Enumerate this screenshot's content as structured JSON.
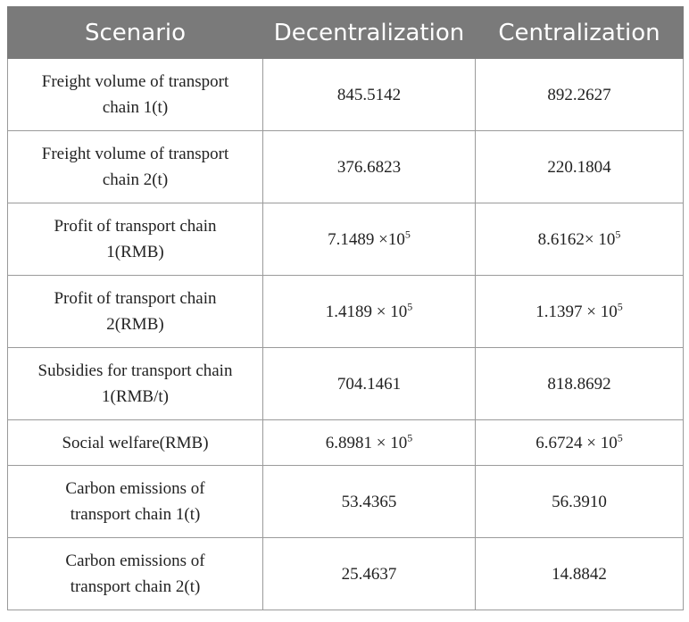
{
  "table": {
    "headers": [
      "Scenario",
      "Decentralization",
      "Centralization"
    ],
    "rows": [
      {
        "label_l1": "Freight volume of transport",
        "label_l2": "chain 1(t)",
        "dec": "845.5142",
        "cen": "892.2627"
      },
      {
        "label_l1": "Freight volume of transport",
        "label_l2": "chain 2(t)",
        "dec": "376.6823",
        "cen": "220.1804"
      },
      {
        "label_l1": "Profit of transport chain",
        "label_l2": "1(RMB)",
        "dec_base": "7.1489 ×10",
        "dec_exp": "5",
        "cen_base": "8.6162× 10",
        "cen_exp": "5"
      },
      {
        "label_l1": "Profit of transport chain",
        "label_l2": "2(RMB)",
        "dec_base": "1.4189 × 10",
        "dec_exp": "5",
        "cen_base": "1.1397 × 10",
        "cen_exp": "5"
      },
      {
        "label_l1": "Subsidies for transport chain",
        "label_l2": "1(RMB/t)",
        "dec": "704.1461",
        "cen": "818.8692"
      },
      {
        "label": "Social welfare(RMB)",
        "dec_base": "6.8981 × 10",
        "dec_exp": "5",
        "cen_base": "6.6724 × 10",
        "cen_exp": "5"
      },
      {
        "label_l1": "Carbon emissions of",
        "label_l2": "transport chain 1(t)",
        "dec": "53.4365",
        "cen": "56.3910"
      },
      {
        "label_l1": "Carbon emissions of",
        "label_l2": "transport chain 2(t)",
        "dec": "25.4637",
        "cen": "14.8842"
      }
    ]
  }
}
